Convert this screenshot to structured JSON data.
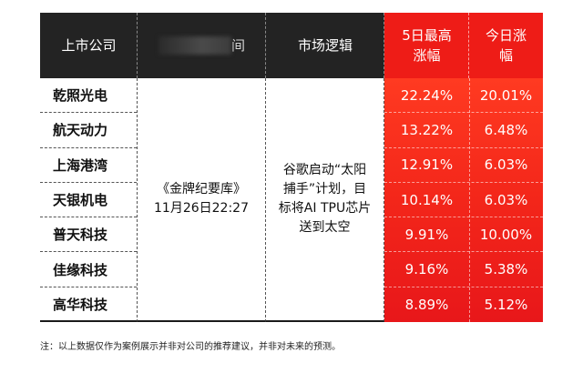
{
  "headers": {
    "company": "上市公司",
    "source_suffix": "间",
    "logic": "市场逻辑",
    "five_day_line1": "5日最高",
    "five_day_line2": "涨幅",
    "today_line1": "今日涨",
    "today_line2": "幅"
  },
  "source": {
    "line1": "《金牌纪要库》",
    "line2": "11月26日22:27"
  },
  "logic_text": "谷歌启动“太阳捕手”计划，目标将AI TPU芯片送到太空",
  "rows": [
    {
      "name": "乾照光电",
      "five_day": "22.24%",
      "today": "20.01%"
    },
    {
      "name": "航天动力",
      "five_day": "13.22%",
      "today": "6.48%"
    },
    {
      "name": "上海港湾",
      "five_day": "12.91%",
      "today": "6.03%"
    },
    {
      "name": "天银机电",
      "five_day": "10.14%",
      "today": "6.03%"
    },
    {
      "name": "普天科技",
      "five_day": "9.91%",
      "today": "10.00%"
    },
    {
      "name": "佳缘科技",
      "five_day": "9.16%",
      "today": "5.38%"
    },
    {
      "name": "高华科技",
      "five_day": "8.89%",
      "today": "5.12%"
    }
  ],
  "note": "注：以上数据仅作为案例展示并非对公司的推荐建议，并非对未来的预测。",
  "colors": {
    "header_bg": "#232323",
    "accent_red": "#ee1c17"
  }
}
